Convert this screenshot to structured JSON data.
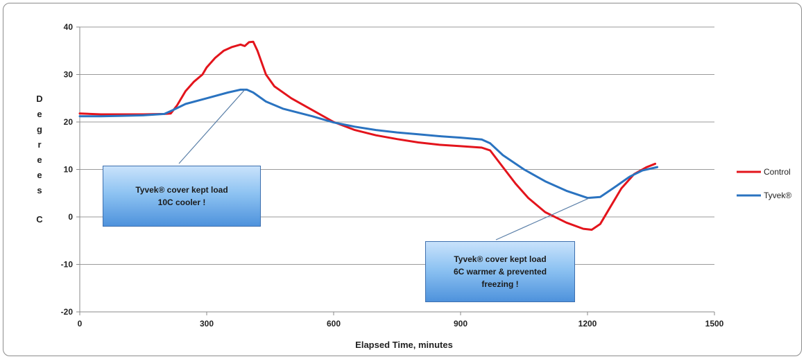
{
  "chart_data": {
    "type": "line",
    "xlabel": "Elapsed Time, minutes",
    "ylabel": "Degrees C",
    "xlim": [
      0,
      1500
    ],
    "ylim": [
      -20,
      40
    ],
    "x_ticks": [
      0,
      300,
      600,
      900,
      1200,
      1500
    ],
    "y_ticks": [
      -20,
      -10,
      0,
      10,
      20,
      30,
      40
    ],
    "grid": "horizontal",
    "legend": "right",
    "series": [
      {
        "name": "Control",
        "color": "#e3141c",
        "points": [
          [
            0,
            21.8
          ],
          [
            50,
            21.6
          ],
          [
            100,
            21.6
          ],
          [
            150,
            21.6
          ],
          [
            200,
            21.7
          ],
          [
            215,
            21.8
          ],
          [
            230,
            23.5
          ],
          [
            250,
            26.5
          ],
          [
            270,
            28.5
          ],
          [
            290,
            30.0
          ],
          [
            300,
            31.5
          ],
          [
            320,
            33.5
          ],
          [
            340,
            35.0
          ],
          [
            360,
            35.8
          ],
          [
            380,
            36.3
          ],
          [
            390,
            36.0
          ],
          [
            400,
            36.8
          ],
          [
            410,
            36.9
          ],
          [
            420,
            35.0
          ],
          [
            440,
            30.0
          ],
          [
            460,
            27.5
          ],
          [
            500,
            25.0
          ],
          [
            550,
            22.5
          ],
          [
            600,
            20.0
          ],
          [
            650,
            18.3
          ],
          [
            700,
            17.2
          ],
          [
            750,
            16.4
          ],
          [
            800,
            15.7
          ],
          [
            850,
            15.2
          ],
          [
            900,
            14.9
          ],
          [
            950,
            14.6
          ],
          [
            970,
            14.0
          ],
          [
            1000,
            10.5
          ],
          [
            1030,
            7.0
          ],
          [
            1060,
            4.0
          ],
          [
            1100,
            1.0
          ],
          [
            1150,
            -1.2
          ],
          [
            1190,
            -2.5
          ],
          [
            1210,
            -2.7
          ],
          [
            1230,
            -1.5
          ],
          [
            1250,
            1.5
          ],
          [
            1280,
            6.0
          ],
          [
            1310,
            9.0
          ],
          [
            1340,
            10.5
          ],
          [
            1360,
            11.2
          ]
        ]
      },
      {
        "name": "Tyvek®",
        "color": "#2a73c0",
        "points": [
          [
            0,
            21.2
          ],
          [
            50,
            21.2
          ],
          [
            100,
            21.3
          ],
          [
            150,
            21.4
          ],
          [
            200,
            21.7
          ],
          [
            220,
            22.5
          ],
          [
            250,
            23.8
          ],
          [
            300,
            25.0
          ],
          [
            350,
            26.2
          ],
          [
            380,
            26.8
          ],
          [
            395,
            26.8
          ],
          [
            410,
            26.2
          ],
          [
            440,
            24.3
          ],
          [
            480,
            22.8
          ],
          [
            550,
            21.2
          ],
          [
            600,
            19.9
          ],
          [
            650,
            19.0
          ],
          [
            700,
            18.3
          ],
          [
            750,
            17.8
          ],
          [
            800,
            17.4
          ],
          [
            850,
            17.0
          ],
          [
            900,
            16.7
          ],
          [
            950,
            16.3
          ],
          [
            970,
            15.5
          ],
          [
            1000,
            13.0
          ],
          [
            1050,
            10.0
          ],
          [
            1100,
            7.5
          ],
          [
            1150,
            5.5
          ],
          [
            1200,
            4.0
          ],
          [
            1230,
            4.2
          ],
          [
            1260,
            6.0
          ],
          [
            1300,
            8.5
          ],
          [
            1330,
            9.8
          ],
          [
            1365,
            10.5
          ]
        ]
      }
    ],
    "annotations": [
      {
        "lines": [
          "Tyvek® cover kept load",
          "10C cooler !"
        ],
        "points_to": [
          390,
          26.8
        ]
      },
      {
        "lines": [
          "Tyvek® cover kept load",
          "6C warmer & prevented",
          "freezing !"
        ],
        "points_to": [
          1205,
          4.0
        ]
      }
    ]
  }
}
